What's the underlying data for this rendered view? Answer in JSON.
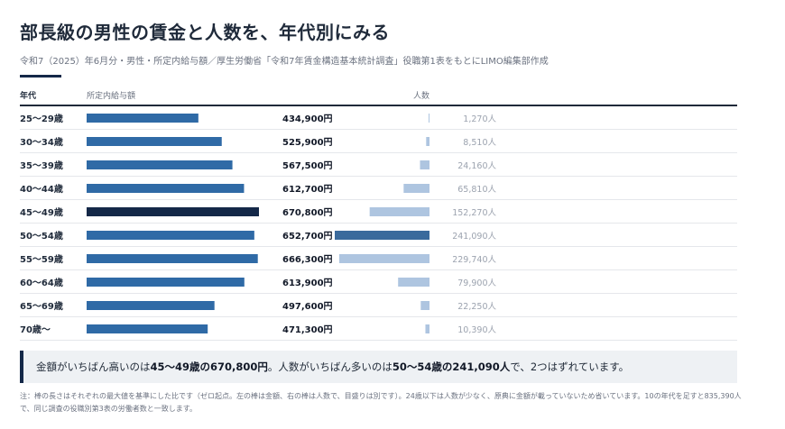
{
  "header": {
    "title": "部長級の男性の賃金と人数を、年代別にみる",
    "subtitle": "令和7（2025）年6月分・男性・所定内給与額／厚生労働省「令和7年賃金構造基本統計調査」役職第1表をもとにLIMO編集部作成"
  },
  "columns": {
    "age": "年代",
    "salary": "所定内給与額",
    "count": "人数"
  },
  "chart_data": {
    "type": "bar",
    "categories": [
      "25〜29歳",
      "30〜34歳",
      "35〜39歳",
      "40〜44歳",
      "45〜49歳",
      "50〜54歳",
      "55〜59歳",
      "60〜64歳",
      "65〜69歳",
      "70歳〜"
    ],
    "series": [
      {
        "name": "所定内給与額",
        "values": [
          434900,
          525900,
          567500,
          612700,
          670800,
          652700,
          666300,
          613900,
          497600,
          471300
        ],
        "labels": [
          "434,900円",
          "525,900円",
          "567,500円",
          "612,700円",
          "670,800円",
          "652,700円",
          "666,300円",
          "613,900円",
          "497,600円",
          "471,300円"
        ]
      },
      {
        "name": "人数",
        "values": [
          1270,
          8510,
          24160,
          65810,
          152270,
          241090,
          229740,
          79900,
          22250,
          10390
        ],
        "labels": [
          "1,270人",
          "8,510人",
          "24,160人",
          "65,810人",
          "152,270人",
          "241,090人",
          "229,740人",
          "79,900人",
          "22,250人",
          "10,390人"
        ]
      }
    ],
    "highlight": {
      "salary_max": "45〜49歳",
      "count_max": "50〜54歳"
    }
  },
  "colors": {
    "salary_bar": "#2f6aa6",
    "salary_bar_highlight": "#142848",
    "count_bar": "#aec5e0",
    "count_bar_highlight": "#3a6a9c",
    "row_rule": "#e5e7eb",
    "accent": "#142848"
  },
  "callout": {
    "t1": "金額がいちばん高いのは",
    "b1": "45〜49歳の670,800円",
    "t2": "。人数がいちばん多いのは",
    "b2": "50〜54歳の241,090人",
    "t3": "で、2つはずれています。"
  },
  "note": "注：棒の長さはそれぞれの最大値を基準にした比です（ゼロ起点。左の棒は金額、右の棒は人数で、目盛りは別です）。24歳以下は人数が少なく、原典に金額が載っていないため省いています。10の年代を足すと835,390人で、同じ調査の役職別第3表の労働者数と一致します。"
}
